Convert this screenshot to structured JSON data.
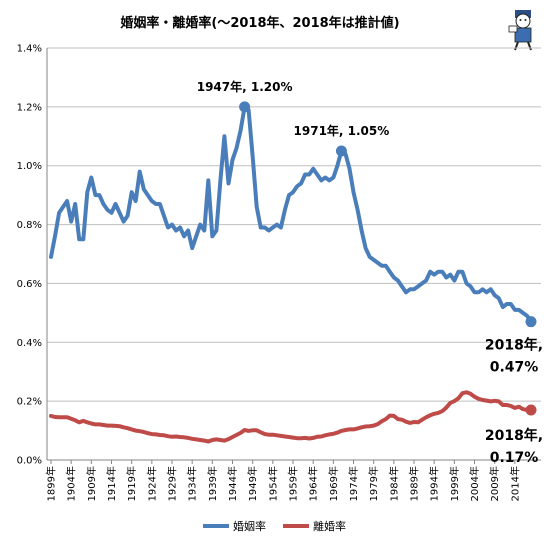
{
  "chart_data": {
    "type": "line",
    "title": "婚姻率・離婚率(～2018年、2018年は推計値)",
    "ylim": [
      0,
      1.4
    ],
    "yticks": [
      "0.0%",
      "0.2%",
      "0.4%",
      "0.6%",
      "0.8%",
      "1.0%",
      "1.2%",
      "1.4%"
    ],
    "xlim": [
      1899,
      2018
    ],
    "xticks": [
      "1899年",
      "1904年",
      "1909年",
      "1914年",
      "1919年",
      "1924年",
      "1929年",
      "1934年",
      "1939年",
      "1944年",
      "1949年",
      "1954年",
      "1959年",
      "1964年",
      "1969年",
      "1974年",
      "1979年",
      "1984年",
      "1989年",
      "1994年",
      "1999年",
      "2004年",
      "2009年",
      "2014年"
    ],
    "grid": true,
    "legend_position": "bottom",
    "series": [
      {
        "name": "婚姻率",
        "color": "#4a7ebb",
        "points": [
          [
            1899,
            0.69
          ],
          [
            1900,
            0.76
          ],
          [
            1901,
            0.84
          ],
          [
            1902,
            0.86
          ],
          [
            1903,
            0.88
          ],
          [
            1904,
            0.81
          ],
          [
            1905,
            0.87
          ],
          [
            1906,
            0.75
          ],
          [
            1907,
            0.75
          ],
          [
            1908,
            0.91
          ],
          [
            1909,
            0.96
          ],
          [
            1910,
            0.9
          ],
          [
            1911,
            0.9
          ],
          [
            1912,
            0.87
          ],
          [
            1913,
            0.85
          ],
          [
            1914,
            0.84
          ],
          [
            1915,
            0.87
          ],
          [
            1916,
            0.84
          ],
          [
            1917,
            0.81
          ],
          [
            1918,
            0.83
          ],
          [
            1919,
            0.91
          ],
          [
            1920,
            0.88
          ],
          [
            1921,
            0.98
          ],
          [
            1922,
            0.92
          ],
          [
            1923,
            0.9
          ],
          [
            1924,
            0.88
          ],
          [
            1925,
            0.87
          ],
          [
            1926,
            0.87
          ],
          [
            1927,
            0.83
          ],
          [
            1928,
            0.79
          ],
          [
            1929,
            0.8
          ],
          [
            1930,
            0.78
          ],
          [
            1931,
            0.79
          ],
          [
            1932,
            0.76
          ],
          [
            1933,
            0.78
          ],
          [
            1934,
            0.72
          ],
          [
            1935,
            0.76
          ],
          [
            1936,
            0.8
          ],
          [
            1937,
            0.78
          ],
          [
            1938,
            0.95
          ],
          [
            1939,
            0.76
          ],
          [
            1940,
            0.78
          ],
          [
            1941,
            0.95
          ],
          [
            1942,
            1.1
          ],
          [
            1943,
            0.94
          ],
          [
            1944,
            1.02
          ],
          [
            1945,
            1.06
          ],
          [
            1946,
            1.12
          ],
          [
            1947,
            1.2
          ],
          [
            1948,
            1.19
          ],
          [
            1949,
            1.03
          ],
          [
            1950,
            0.86
          ],
          [
            1951,
            0.79
          ],
          [
            1952,
            0.79
          ],
          [
            1953,
            0.78
          ],
          [
            1954,
            0.79
          ],
          [
            1955,
            0.8
          ],
          [
            1956,
            0.79
          ],
          [
            1957,
            0.85
          ],
          [
            1958,
            0.9
          ],
          [
            1959,
            0.91
          ],
          [
            1960,
            0.93
          ],
          [
            1961,
            0.94
          ],
          [
            1962,
            0.97
          ],
          [
            1963,
            0.97
          ],
          [
            1964,
            0.99
          ],
          [
            1965,
            0.97
          ],
          [
            1966,
            0.95
          ],
          [
            1967,
            0.96
          ],
          [
            1968,
            0.95
          ],
          [
            1969,
            0.96
          ],
          [
            1970,
            1.0
          ],
          [
            1971,
            1.05
          ],
          [
            1972,
            1.04
          ],
          [
            1973,
            0.99
          ],
          [
            1974,
            0.91
          ],
          [
            1975,
            0.85
          ],
          [
            1976,
            0.78
          ],
          [
            1977,
            0.72
          ],
          [
            1978,
            0.69
          ],
          [
            1979,
            0.68
          ],
          [
            1980,
            0.67
          ],
          [
            1981,
            0.66
          ],
          [
            1982,
            0.66
          ],
          [
            1983,
            0.64
          ],
          [
            1984,
            0.62
          ],
          [
            1985,
            0.61
          ],
          [
            1986,
            0.59
          ],
          [
            1987,
            0.57
          ],
          [
            1988,
            0.58
          ],
          [
            1989,
            0.58
          ],
          [
            1990,
            0.59
          ],
          [
            1991,
            0.6
          ],
          [
            1992,
            0.61
          ],
          [
            1993,
            0.64
          ],
          [
            1994,
            0.63
          ],
          [
            1995,
            0.64
          ],
          [
            1996,
            0.64
          ],
          [
            1997,
            0.62
          ],
          [
            1998,
            0.63
          ],
          [
            1999,
            0.61
          ],
          [
            2000,
            0.64
          ],
          [
            2001,
            0.64
          ],
          [
            2002,
            0.6
          ],
          [
            2003,
            0.59
          ],
          [
            2004,
            0.57
          ],
          [
            2005,
            0.57
          ],
          [
            2006,
            0.58
          ],
          [
            2007,
            0.57
          ],
          [
            2008,
            0.58
          ],
          [
            2009,
            0.56
          ],
          [
            2010,
            0.55
          ],
          [
            2011,
            0.52
          ],
          [
            2012,
            0.53
          ],
          [
            2013,
            0.53
          ],
          [
            2014,
            0.51
          ],
          [
            2015,
            0.51
          ],
          [
            2016,
            0.5
          ],
          [
            2017,
            0.49
          ],
          [
            2018,
            0.47
          ]
        ]
      },
      {
        "name": "離婚率",
        "color": "#be4b48",
        "points": [
          [
            1899,
            0.15
          ],
          [
            1900,
            0.146
          ],
          [
            1901,
            0.145
          ],
          [
            1902,
            0.145
          ],
          [
            1903,
            0.145
          ],
          [
            1904,
            0.14
          ],
          [
            1905,
            0.135
          ],
          [
            1906,
            0.128
          ],
          [
            1907,
            0.133
          ],
          [
            1908,
            0.128
          ],
          [
            1909,
            0.124
          ],
          [
            1910,
            0.121
          ],
          [
            1911,
            0.121
          ],
          [
            1912,
            0.119
          ],
          [
            1913,
            0.117
          ],
          [
            1914,
            0.117
          ],
          [
            1915,
            0.116
          ],
          [
            1916,
            0.115
          ],
          [
            1917,
            0.111
          ],
          [
            1918,
            0.108
          ],
          [
            1919,
            0.104
          ],
          [
            1920,
            0.1
          ],
          [
            1921,
            0.098
          ],
          [
            1922,
            0.095
          ],
          [
            1923,
            0.091
          ],
          [
            1924,
            0.088
          ],
          [
            1925,
            0.087
          ],
          [
            1926,
            0.085
          ],
          [
            1927,
            0.084
          ],
          [
            1928,
            0.081
          ],
          [
            1929,
            0.079
          ],
          [
            1930,
            0.08
          ],
          [
            1931,
            0.078
          ],
          [
            1932,
            0.077
          ],
          [
            1933,
            0.075
          ],
          [
            1934,
            0.072
          ],
          [
            1935,
            0.07
          ],
          [
            1936,
            0.068
          ],
          [
            1937,
            0.066
          ],
          [
            1938,
            0.063
          ],
          [
            1939,
            0.068
          ],
          [
            1940,
            0.07
          ],
          [
            1941,
            0.068
          ],
          [
            1942,
            0.066
          ],
          [
            1943,
            0.071
          ],
          [
            1944,
            0.078
          ],
          [
            1945,
            0.085
          ],
          [
            1946,
            0.092
          ],
          [
            1947,
            0.102
          ],
          [
            1948,
            0.099
          ],
          [
            1949,
            0.101
          ],
          [
            1950,
            0.101
          ],
          [
            1951,
            0.094
          ],
          [
            1952,
            0.088
          ],
          [
            1953,
            0.086
          ],
          [
            1954,
            0.086
          ],
          [
            1955,
            0.084
          ],
          [
            1956,
            0.082
          ],
          [
            1957,
            0.08
          ],
          [
            1958,
            0.078
          ],
          [
            1959,
            0.076
          ],
          [
            1960,
            0.074
          ],
          [
            1961,
            0.074
          ],
          [
            1962,
            0.075
          ],
          [
            1963,
            0.073
          ],
          [
            1964,
            0.075
          ],
          [
            1965,
            0.079
          ],
          [
            1966,
            0.08
          ],
          [
            1967,
            0.084
          ],
          [
            1968,
            0.087
          ],
          [
            1969,
            0.089
          ],
          [
            1970,
            0.093
          ],
          [
            1971,
            0.099
          ],
          [
            1972,
            0.102
          ],
          [
            1973,
            0.104
          ],
          [
            1974,
            0.104
          ],
          [
            1975,
            0.107
          ],
          [
            1976,
            0.111
          ],
          [
            1977,
            0.114
          ],
          [
            1978,
            0.115
          ],
          [
            1979,
            0.117
          ],
          [
            1980,
            0.122
          ],
          [
            1981,
            0.132
          ],
          [
            1982,
            0.139
          ],
          [
            1983,
            0.151
          ],
          [
            1984,
            0.15
          ],
          [
            1985,
            0.139
          ],
          [
            1986,
            0.137
          ],
          [
            1987,
            0.13
          ],
          [
            1988,
            0.126
          ],
          [
            1989,
            0.129
          ],
          [
            1990,
            0.128
          ],
          [
            1991,
            0.137
          ],
          [
            1992,
            0.145
          ],
          [
            1993,
            0.152
          ],
          [
            1994,
            0.157
          ],
          [
            1995,
            0.16
          ],
          [
            1996,
            0.166
          ],
          [
            1997,
            0.178
          ],
          [
            1998,
            0.194
          ],
          [
            1999,
            0.2
          ],
          [
            2000,
            0.21
          ],
          [
            2001,
            0.227
          ],
          [
            2002,
            0.23
          ],
          [
            2003,
            0.225
          ],
          [
            2004,
            0.215
          ],
          [
            2005,
            0.208
          ],
          [
            2006,
            0.204
          ],
          [
            2007,
            0.202
          ],
          [
            2008,
            0.199
          ],
          [
            2009,
            0.201
          ],
          [
            2010,
            0.199
          ],
          [
            2011,
            0.187
          ],
          [
            2012,
            0.187
          ],
          [
            2013,
            0.184
          ],
          [
            2014,
            0.177
          ],
          [
            2015,
            0.181
          ],
          [
            2016,
            0.173
          ],
          [
            2017,
            0.17
          ],
          [
            2018,
            0.17
          ]
        ]
      }
    ],
    "annotations": [
      {
        "text": "1947年, 1.20%",
        "series": 0,
        "x": 1947,
        "y": 1.2
      },
      {
        "text": "1971年, 1.05%",
        "series": 0,
        "x": 1971,
        "y": 1.05
      },
      {
        "text": "2018年,",
        "text2": "0.47%",
        "series": 0,
        "x": 2018,
        "y": 0.47
      },
      {
        "text": "2018年,",
        "text2": "0.17%",
        "series": 1,
        "x": 2018,
        "y": 0.17
      }
    ]
  }
}
